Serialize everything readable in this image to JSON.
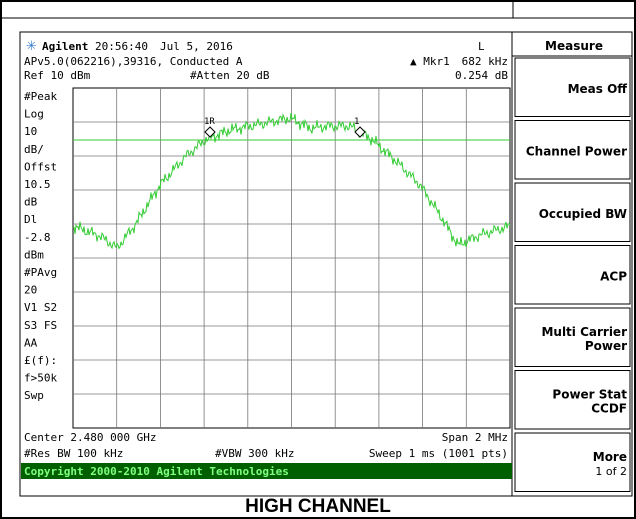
{
  "header": {
    "brand": "Agilent",
    "time": "20:56:40",
    "date": "Jul 5, 2016",
    "mode": "L"
  },
  "status": {
    "line1_left": "APv5.0(062216),39316, Conducted A",
    "marker_label": "▲ Mkr1",
    "marker_freq": "682 kHz",
    "ref": "Ref 10 dBm",
    "atten": "#Atten 20 dB",
    "marker_value": "0.254 dB"
  },
  "left_labels": [
    "#Peak",
    "Log",
    "10",
    "dB/",
    "Offst",
    "10.5",
    "dB",
    "Dl",
    "-2.8",
    "dBm",
    "#PAvg",
    "20",
    "V1  S2",
    "S3  FS",
    "AA",
    "£(f):",
    "f>50k",
    "Swp"
  ],
  "markers": [
    "1R",
    "1"
  ],
  "footer": {
    "center": "Center 2.480 000 GHz",
    "span": "Span 2 MHz",
    "rbw": "#Res BW 100 kHz",
    "vbw": "#VBW 300 kHz",
    "sweep": "Sweep 1 ms (1001 pts)",
    "copyright": "Copyright 2000-2010 Agilent Technologies"
  },
  "softkeys": {
    "title": "Measure",
    "keys": [
      [
        "Meas Off"
      ],
      [
        "Channel Power"
      ],
      [
        "Occupied BW"
      ],
      [
        "ACP"
      ],
      [
        "Multi Carrier",
        "Power"
      ],
      [
        "Power Stat",
        "CCDF"
      ],
      [
        "More",
        "1 of 2"
      ]
    ]
  },
  "caption": "HIGH CHANNEL"
}
